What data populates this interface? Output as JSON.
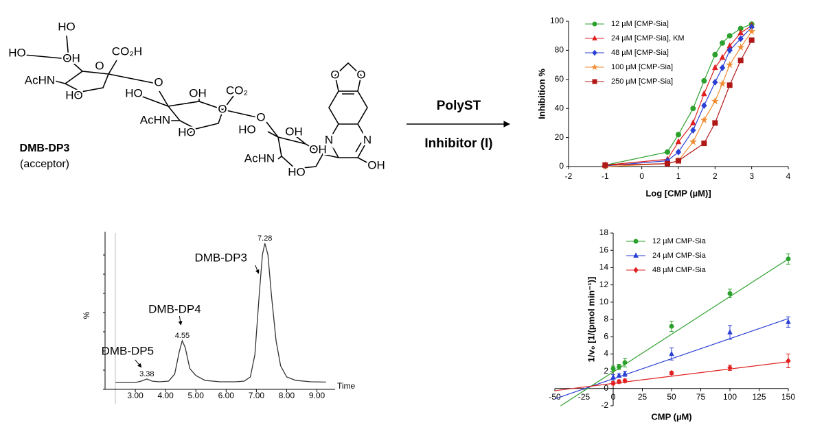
{
  "scheme": {
    "labels": [
      "HO",
      "HO",
      "OH",
      "CO₂H",
      "O",
      "AcHN",
      "HO",
      "O",
      "HO",
      "OH",
      "CO₂",
      "O",
      "AcHN",
      "HO",
      "O",
      "HO",
      "OH",
      "OH",
      "AcHN",
      "HO",
      "O",
      "O",
      "N",
      "N",
      "OH"
    ],
    "compound": "DMB-DP3",
    "role": "(acceptor)",
    "enzyme": "PolyST",
    "inhibitor": "Inhibitor (I)"
  },
  "chart_data": [
    {
      "type": "dose",
      "xlabel": "Log [CMP (µM)]",
      "ylabel": "Inhibition %",
      "xlim": [
        -2,
        4
      ],
      "xticks": [
        -2,
        -1,
        0,
        1,
        2,
        3,
        4
      ],
      "ylim": [
        0,
        100
      ],
      "yticks": [
        0,
        20,
        40,
        60,
        80,
        100
      ],
      "legend": "upper left",
      "series": [
        {
          "name": "12 µM [CMP-Sia]",
          "color": "#2ca02c",
          "marker": "circle",
          "x": [
            -1,
            0.7,
            1,
            1.4,
            1.7,
            2,
            2.2,
            2.4,
            2.7,
            3
          ],
          "values": [
            1,
            10,
            22,
            40,
            59,
            77,
            85,
            90,
            95,
            98
          ]
        },
        {
          "name": "24 µM [CMP-Sia], KM",
          "color": "#e02020",
          "marker": "triangle",
          "x": [
            -1,
            0.7,
            1,
            1.4,
            1.7,
            2,
            2.2,
            2.4,
            2.7,
            3
          ],
          "values": [
            1,
            5,
            17,
            30,
            50,
            68,
            75,
            83,
            92,
            97
          ]
        },
        {
          "name": "48 µM [CMP-Sia]",
          "color": "#2a3fd4",
          "marker": "diamond",
          "x": [
            -1,
            0.7,
            1,
            1.4,
            1.7,
            2,
            2.2,
            2.4,
            2.7,
            3
          ],
          "values": [
            0.5,
            4,
            10,
            25,
            42,
            58,
            68,
            80,
            88,
            96
          ]
        },
        {
          "name": "100 µM [CMP-Sia]",
          "color": "#f08a30",
          "marker": "star",
          "x": [
            -1,
            0.7,
            1,
            1.4,
            1.7,
            2,
            2.2,
            2.4,
            2.7,
            3
          ],
          "values": [
            0,
            2,
            4,
            17,
            32,
            45,
            57,
            70,
            82,
            93
          ]
        },
        {
          "name": "250 µM [CMP-Sia]",
          "color": "#b01818",
          "marker": "square",
          "x": [
            -1,
            0.7,
            1,
            1.7,
            2,
            2.4,
            2.7,
            3
          ],
          "values": [
            1,
            2,
            4,
            16,
            30,
            56,
            73,
            87
          ]
        }
      ]
    },
    {
      "type": "chromatogram",
      "xlabel": "Time",
      "ylabel": "%",
      "xlim": [
        2,
        9.6
      ],
      "xticks": [
        {
          "value": 3,
          "label": "3.00"
        },
        {
          "value": 4,
          "label": "4.00"
        },
        {
          "value": 5,
          "label": "5.00"
        },
        {
          "value": 6,
          "label": "6.00"
        },
        {
          "value": 7,
          "label": "7.00"
        },
        {
          "value": 8,
          "label": "8.00"
        },
        {
          "value": 9,
          "label": "9.00"
        }
      ],
      "ylim": [
        0,
        105
      ],
      "color": "#333333",
      "x": [
        2.35,
        3.0,
        3.2,
        3.38,
        3.55,
        3.8,
        4.1,
        4.3,
        4.45,
        4.55,
        4.65,
        4.8,
        5.0,
        5.3,
        5.8,
        6.3,
        6.6,
        6.8,
        6.95,
        7.1,
        7.2,
        7.28,
        7.38,
        7.5,
        7.65,
        7.8,
        8.0,
        8.3,
        8.8,
        9.3
      ],
      "values": [
        0,
        0,
        1,
        2.5,
        1,
        0.5,
        1,
        6,
        22,
        30,
        25,
        10,
        5,
        1.5,
        0.5,
        0.5,
        1,
        4,
        20,
        65,
        92,
        100,
        92,
        62,
        30,
        12,
        4,
        1.5,
        0.5,
        0.3
      ],
      "peaks": [
        {
          "x": 3.38,
          "name": "DMB-DP5"
        },
        {
          "x": 4.55,
          "name": "DMB-DP4"
        },
        {
          "x": 7.28,
          "name": "DMB-DP3"
        }
      ]
    },
    {
      "type": "linear-fit",
      "xlabel": "CMP (µM)",
      "ylabel": "1/v₀ [1/(pmol min⁻¹)]",
      "xlim": [
        -50,
        150
      ],
      "xticks": [
        -50,
        -25,
        0,
        25,
        50,
        75,
        100,
        125,
        150
      ],
      "ylim": [
        -2,
        18
      ],
      "yticks": [
        -2,
        0,
        2,
        4,
        6,
        8,
        10,
        12,
        14,
        16,
        18
      ],
      "legend": "upper left",
      "series": [
        {
          "name": "12 µM CMP-Sia",
          "color": "#2ca02c",
          "marker": "circle",
          "x": [
            0,
            5,
            10,
            50,
            100,
            150
          ],
          "values": [
            2.3,
            2.5,
            3.0,
            7.2,
            11.0,
            15.0
          ],
          "errors": [
            0.3,
            0.3,
            0.5,
            0.6,
            0.5,
            0.6
          ],
          "fit_x": [
            -45,
            150
          ],
          "fit_y": [
            -2,
            15
          ]
        },
        {
          "name": "24 µM CMP-Sia",
          "color": "#2a3fd4",
          "marker": "triangle",
          "x": [
            0,
            5,
            10,
            50,
            100,
            150
          ],
          "values": [
            1.3,
            1.5,
            1.7,
            4.0,
            6.5,
            7.7
          ],
          "errors": [
            0.3,
            0.2,
            0.3,
            0.7,
            0.8,
            0.6
          ],
          "fit_x": [
            -50,
            150
          ],
          "fit_y": [
            -1.2,
            8.1
          ]
        },
        {
          "name": "48 µM CMP-Sia",
          "color": "#e02020",
          "marker": "diamond",
          "x": [
            0,
            5,
            10,
            50,
            100,
            150
          ],
          "values": [
            0.6,
            0.8,
            0.9,
            1.8,
            2.4,
            3.2
          ],
          "errors": [
            0.2,
            0.2,
            0.2,
            0.2,
            0.3,
            0.8
          ],
          "fit_x": [
            -50,
            150
          ],
          "fit_y": [
            -0.25,
            3.1
          ]
        }
      ]
    }
  ]
}
